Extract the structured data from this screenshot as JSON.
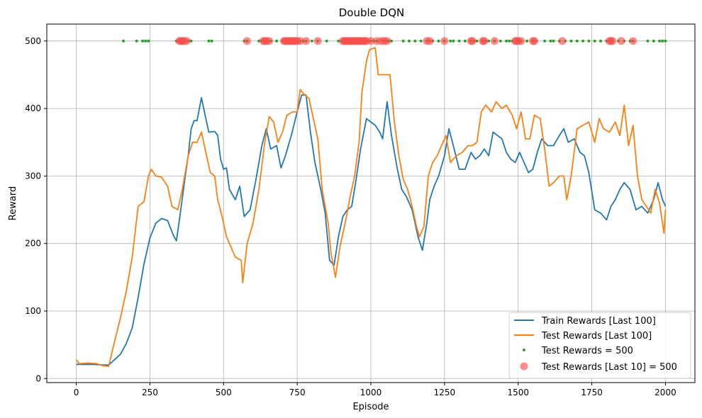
{
  "chart_data": {
    "type": "line",
    "title": "Double DQN",
    "xlabel": "Episode",
    "ylabel": "Reward",
    "xlim": [
      -100,
      2100
    ],
    "ylim": [
      -6,
      525
    ],
    "xticks": [
      "0",
      "250",
      "500",
      "750",
      "1000",
      "1250",
      "1500",
      "1750",
      "2000"
    ],
    "xtick_values": [
      0,
      250,
      500,
      750,
      1000,
      1250,
      1500,
      1750,
      2000
    ],
    "yticks": [
      "0",
      "100",
      "200",
      "300",
      "400",
      "500"
    ],
    "ytick_values": [
      0,
      100,
      200,
      300,
      400,
      500
    ],
    "grid": true,
    "legend_position": "lower-right",
    "series": [
      {
        "name": "Train Rewards [Last 100]",
        "color": "#1f77b4",
        "points": [
          [
            0,
            21
          ],
          [
            30,
            21
          ],
          [
            60,
            21
          ],
          [
            90,
            20
          ],
          [
            110,
            20
          ],
          [
            130,
            28
          ],
          [
            150,
            36
          ],
          [
            170,
            52
          ],
          [
            190,
            75
          ],
          [
            210,
            120
          ],
          [
            230,
            170
          ],
          [
            250,
            208
          ],
          [
            270,
            230
          ],
          [
            290,
            237
          ],
          [
            310,
            234
          ],
          [
            330,
            212
          ],
          [
            340,
            204
          ],
          [
            350,
            235
          ],
          [
            370,
            300
          ],
          [
            380,
            330
          ],
          [
            390,
            370
          ],
          [
            400,
            382
          ],
          [
            410,
            382
          ],
          [
            425,
            416
          ],
          [
            440,
            385
          ],
          [
            450,
            365
          ],
          [
            470,
            366
          ],
          [
            480,
            360
          ],
          [
            490,
            325
          ],
          [
            500,
            310
          ],
          [
            510,
            312
          ],
          [
            520,
            280
          ],
          [
            540,
            265
          ],
          [
            555,
            285
          ],
          [
            570,
            240
          ],
          [
            590,
            250
          ],
          [
            610,
            295
          ],
          [
            630,
            345
          ],
          [
            645,
            370
          ],
          [
            660,
            340
          ],
          [
            680,
            345
          ],
          [
            695,
            312
          ],
          [
            710,
            330
          ],
          [
            730,
            360
          ],
          [
            750,
            395
          ],
          [
            765,
            420
          ],
          [
            780,
            420
          ],
          [
            795,
            365
          ],
          [
            810,
            320
          ],
          [
            830,
            280
          ],
          [
            845,
            245
          ],
          [
            860,
            175
          ],
          [
            875,
            168
          ],
          [
            890,
            210
          ],
          [
            905,
            240
          ],
          [
            920,
            250
          ],
          [
            935,
            255
          ],
          [
            950,
            295
          ],
          [
            965,
            340
          ],
          [
            985,
            385
          ],
          [
            1000,
            380
          ],
          [
            1015,
            375
          ],
          [
            1030,
            365
          ],
          [
            1040,
            355
          ],
          [
            1055,
            410
          ],
          [
            1070,
            360
          ],
          [
            1090,
            310
          ],
          [
            1105,
            280
          ],
          [
            1120,
            270
          ],
          [
            1140,
            250
          ],
          [
            1160,
            210
          ],
          [
            1175,
            190
          ],
          [
            1190,
            230
          ],
          [
            1200,
            265
          ],
          [
            1215,
            285
          ],
          [
            1230,
            300
          ],
          [
            1250,
            330
          ],
          [
            1265,
            370
          ],
          [
            1280,
            345
          ],
          [
            1300,
            310
          ],
          [
            1320,
            310
          ],
          [
            1340,
            335
          ],
          [
            1355,
            325
          ],
          [
            1370,
            330
          ],
          [
            1385,
            340
          ],
          [
            1400,
            330
          ],
          [
            1415,
            365
          ],
          [
            1430,
            360
          ],
          [
            1445,
            355
          ],
          [
            1460,
            335
          ],
          [
            1475,
            325
          ],
          [
            1490,
            320
          ],
          [
            1505,
            335
          ],
          [
            1520,
            320
          ],
          [
            1535,
            305
          ],
          [
            1550,
            310
          ],
          [
            1565,
            335
          ],
          [
            1580,
            355
          ],
          [
            1600,
            345
          ],
          [
            1620,
            345
          ],
          [
            1640,
            360
          ],
          [
            1655,
            370
          ],
          [
            1670,
            350
          ],
          [
            1690,
            355
          ],
          [
            1710,
            335
          ],
          [
            1725,
            330
          ],
          [
            1740,
            305
          ],
          [
            1760,
            250
          ],
          [
            1780,
            245
          ],
          [
            1800,
            235
          ],
          [
            1815,
            255
          ],
          [
            1830,
            265
          ],
          [
            1845,
            280
          ],
          [
            1860,
            290
          ],
          [
            1880,
            280
          ],
          [
            1900,
            250
          ],
          [
            1920,
            255
          ],
          [
            1940,
            245
          ],
          [
            1960,
            265
          ],
          [
            1975,
            290
          ],
          [
            1990,
            265
          ],
          [
            2000,
            255
          ]
        ]
      },
      {
        "name": "Test Rewards [Last 100]",
        "color": "#ff7f0e",
        "points": [
          [
            0,
            28
          ],
          [
            10,
            22
          ],
          [
            40,
            23
          ],
          [
            70,
            22
          ],
          [
            90,
            19
          ],
          [
            110,
            18
          ],
          [
            130,
            55
          ],
          [
            150,
            90
          ],
          [
            170,
            130
          ],
          [
            190,
            180
          ],
          [
            210,
            255
          ],
          [
            230,
            262
          ],
          [
            245,
            300
          ],
          [
            255,
            310
          ],
          [
            270,
            300
          ],
          [
            290,
            298
          ],
          [
            310,
            285
          ],
          [
            325,
            255
          ],
          [
            345,
            250
          ],
          [
            360,
            280
          ],
          [
            380,
            330
          ],
          [
            395,
            350
          ],
          [
            410,
            350
          ],
          [
            425,
            365
          ],
          [
            440,
            335
          ],
          [
            455,
            305
          ],
          [
            470,
            300
          ],
          [
            480,
            265
          ],
          [
            495,
            240
          ],
          [
            510,
            210
          ],
          [
            525,
            195
          ],
          [
            540,
            180
          ],
          [
            560,
            175
          ],
          [
            565,
            142
          ],
          [
            580,
            200
          ],
          [
            600,
            230
          ],
          [
            620,
            280
          ],
          [
            640,
            350
          ],
          [
            655,
            388
          ],
          [
            670,
            380
          ],
          [
            685,
            350
          ],
          [
            700,
            365
          ],
          [
            715,
            390
          ],
          [
            735,
            395
          ],
          [
            750,
            395
          ],
          [
            760,
            428
          ],
          [
            775,
            420
          ],
          [
            790,
            415
          ],
          [
            800,
            395
          ],
          [
            820,
            355
          ],
          [
            835,
            280
          ],
          [
            855,
            230
          ],
          [
            865,
            185
          ],
          [
            880,
            150
          ],
          [
            895,
            195
          ],
          [
            915,
            235
          ],
          [
            930,
            270
          ],
          [
            945,
            300
          ],
          [
            960,
            350
          ],
          [
            970,
            425
          ],
          [
            985,
            470
          ],
          [
            995,
            487
          ],
          [
            1015,
            490
          ],
          [
            1025,
            450
          ],
          [
            1045,
            450
          ],
          [
            1065,
            450
          ],
          [
            1080,
            380
          ],
          [
            1095,
            330
          ],
          [
            1110,
            295
          ],
          [
            1125,
            280
          ],
          [
            1140,
            255
          ],
          [
            1155,
            225
          ],
          [
            1165,
            210
          ],
          [
            1180,
            225
          ],
          [
            1195,
            300
          ],
          [
            1210,
            320
          ],
          [
            1225,
            330
          ],
          [
            1240,
            345
          ],
          [
            1255,
            360
          ],
          [
            1270,
            320
          ],
          [
            1290,
            330
          ],
          [
            1310,
            335
          ],
          [
            1330,
            345
          ],
          [
            1345,
            345
          ],
          [
            1360,
            350
          ],
          [
            1375,
            395
          ],
          [
            1390,
            405
          ],
          [
            1410,
            395
          ],
          [
            1425,
            410
          ],
          [
            1445,
            400
          ],
          [
            1460,
            405
          ],
          [
            1480,
            390
          ],
          [
            1495,
            370
          ],
          [
            1510,
            395
          ],
          [
            1525,
            355
          ],
          [
            1540,
            355
          ],
          [
            1555,
            390
          ],
          [
            1575,
            385
          ],
          [
            1590,
            340
          ],
          [
            1605,
            285
          ],
          [
            1620,
            290
          ],
          [
            1640,
            300
          ],
          [
            1655,
            300
          ],
          [
            1665,
            265
          ],
          [
            1680,
            300
          ],
          [
            1700,
            370
          ],
          [
            1720,
            375
          ],
          [
            1740,
            380
          ],
          [
            1760,
            350
          ],
          [
            1775,
            385
          ],
          [
            1790,
            370
          ],
          [
            1810,
            365
          ],
          [
            1830,
            380
          ],
          [
            1845,
            360
          ],
          [
            1860,
            405
          ],
          [
            1875,
            345
          ],
          [
            1890,
            375
          ],
          [
            1905,
            300
          ],
          [
            1920,
            265
          ],
          [
            1935,
            255
          ],
          [
            1950,
            245
          ],
          [
            1965,
            280
          ],
          [
            1980,
            260
          ],
          [
            1995,
            215
          ],
          [
            2000,
            250
          ]
        ]
      }
    ],
    "scatter_series": [
      {
        "name": "Test Rewards = 500",
        "color": "#2ca02c",
        "y": 500,
        "x": [
          160,
          205,
          225,
          235,
          245,
          340,
          350,
          360,
          370,
          380,
          390,
          450,
          460,
          570,
          580,
          620,
          630,
          640,
          650,
          660,
          680,
          700,
          710,
          720,
          730,
          740,
          750,
          760,
          770,
          780,
          800,
          820,
          850,
          890,
          900,
          910,
          920,
          930,
          940,
          950,
          960,
          970,
          980,
          990,
          1000,
          1010,
          1020,
          1040,
          1050,
          1060,
          1070,
          1110,
          1130,
          1150,
          1170,
          1190,
          1200,
          1210,
          1230,
          1250,
          1270,
          1280,
          1300,
          1320,
          1340,
          1350,
          1360,
          1380,
          1390,
          1400,
          1420,
          1440,
          1460,
          1470,
          1480,
          1500,
          1510,
          1530,
          1550,
          1560,
          1590,
          1610,
          1620,
          1640,
          1660,
          1680,
          1700,
          1720,
          1740,
          1760,
          1780,
          1800,
          1810,
          1820,
          1840,
          1860,
          1880,
          1890,
          1940,
          1960,
          1980,
          1990,
          2000
        ]
      },
      {
        "name": "Test Rewards [Last 10] = 500",
        "color": "#ff4d4d",
        "y": 500,
        "x": [
          350,
          355,
          360,
          365,
          375,
          580,
          635,
          640,
          645,
          655,
          705,
          710,
          715,
          720,
          725,
          730,
          735,
          740,
          745,
          750,
          760,
          780,
          820,
          905,
          910,
          915,
          920,
          925,
          930,
          935,
          940,
          945,
          950,
          955,
          960,
          965,
          970,
          975,
          980,
          985,
          1000,
          1020,
          1035,
          1045,
          1055,
          1190,
          1200,
          1250,
          1340,
          1345,
          1380,
          1385,
          1420,
          1490,
          1495,
          1500,
          1510,
          1550,
          1555,
          1650,
          1810,
          1815,
          1820,
          1850,
          1890
        ]
      }
    ]
  }
}
